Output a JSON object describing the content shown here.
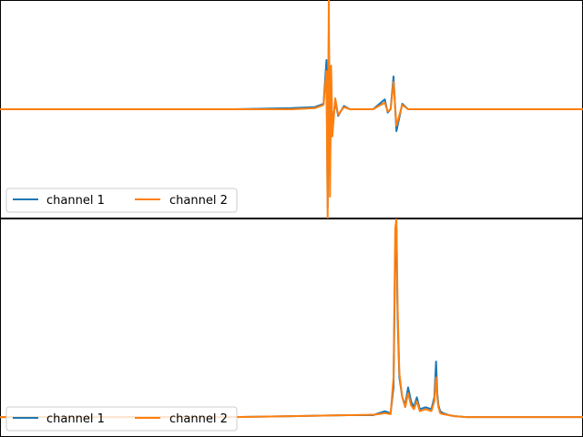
{
  "chart_data": [
    {
      "type": "line",
      "title": "",
      "xlabel": "",
      "ylabel": "",
      "xlim": [
        0,
        1000
      ],
      "ylim": [
        -1,
        1
      ],
      "axes_visible": false,
      "grid": false,
      "legend": {
        "placement": "lower-left",
        "ncol": 2
      },
      "series": [
        {
          "name": "channel 1",
          "color": "#1f77b4",
          "x": [
            0,
            100,
            200,
            300,
            400,
            500,
            540,
            555,
            560,
            562,
            564,
            566,
            568,
            570,
            575,
            580,
            590,
            600,
            620,
            640,
            660,
            665,
            670,
            675,
            680,
            690,
            700,
            750,
            800,
            900,
            1000
          ],
          "y": [
            0.0,
            0.0,
            0.0,
            0.0,
            0.0,
            0.01,
            0.02,
            0.05,
            0.45,
            -0.9,
            0.7,
            -0.6,
            0.3,
            -0.2,
            0.08,
            -0.06,
            0.03,
            0.0,
            0.0,
            0.0,
            0.09,
            -0.03,
            0.0,
            0.3,
            -0.2,
            0.05,
            0.0,
            0.0,
            0.0,
            0.0,
            0.0
          ]
        },
        {
          "name": "channel 2",
          "color": "#ff7f0e",
          "x": [
            0,
            100,
            200,
            300,
            400,
            500,
            540,
            555,
            560,
            562,
            564,
            566,
            568,
            570,
            575,
            580,
            590,
            600,
            620,
            640,
            660,
            665,
            670,
            675,
            680,
            690,
            700,
            750,
            800,
            900,
            1000
          ],
          "y": [
            0.0,
            0.0,
            0.0,
            0.0,
            0.0,
            0.0,
            0.01,
            0.04,
            0.35,
            -1.0,
            1.0,
            -0.8,
            0.4,
            -0.25,
            0.1,
            -0.05,
            0.02,
            0.0,
            0.0,
            0.0,
            0.06,
            -0.02,
            0.0,
            0.25,
            -0.15,
            0.04,
            0.0,
            0.0,
            0.0,
            0.0,
            0.0
          ]
        }
      ]
    },
    {
      "type": "line",
      "title": "",
      "xlabel": "",
      "ylabel": "",
      "xlim": [
        0,
        1000
      ],
      "ylim": [
        -0.1,
        1
      ],
      "axes_visible": false,
      "grid": false,
      "legend": {
        "placement": "lower-left",
        "ncol": 2
      },
      "series": [
        {
          "name": "channel 1",
          "color": "#1f77b4",
          "x": [
            0,
            100,
            200,
            300,
            400,
            500,
            600,
            640,
            650,
            660,
            670,
            675,
            678,
            680,
            682,
            685,
            690,
            695,
            700,
            705,
            710,
            715,
            720,
            730,
            740,
            745,
            748,
            750,
            752,
            755,
            760,
            770,
            780,
            800,
            850,
            900,
            1000
          ],
          "y": [
            0.0,
            0.0,
            0.0,
            0.0,
            0.0,
            0.005,
            0.01,
            0.01,
            0.02,
            0.03,
            0.02,
            0.15,
            0.85,
            0.95,
            0.5,
            0.2,
            0.1,
            0.06,
            0.15,
            0.08,
            0.05,
            0.1,
            0.04,
            0.05,
            0.04,
            0.1,
            0.28,
            0.12,
            0.06,
            0.03,
            0.02,
            0.01,
            0.005,
            0.0,
            0.0,
            0.0,
            0.0
          ]
        },
        {
          "name": "channel 2",
          "color": "#ff7f0e",
          "x": [
            0,
            100,
            200,
            300,
            400,
            500,
            600,
            640,
            650,
            660,
            670,
            675,
            678,
            680,
            682,
            685,
            690,
            695,
            700,
            705,
            710,
            715,
            720,
            730,
            740,
            745,
            748,
            750,
            752,
            755,
            760,
            770,
            780,
            800,
            850,
            900,
            1000
          ],
          "y": [
            0.0,
            0.0,
            0.0,
            0.0,
            0.0,
            0.005,
            0.01,
            0.012,
            0.015,
            0.02,
            0.015,
            0.2,
            0.95,
            1.0,
            0.55,
            0.22,
            0.1,
            0.05,
            0.12,
            0.06,
            0.04,
            0.08,
            0.03,
            0.04,
            0.03,
            0.08,
            0.2,
            0.1,
            0.05,
            0.02,
            0.015,
            0.01,
            0.005,
            0.0,
            0.0,
            0.0,
            0.0
          ]
        }
      ]
    }
  ]
}
